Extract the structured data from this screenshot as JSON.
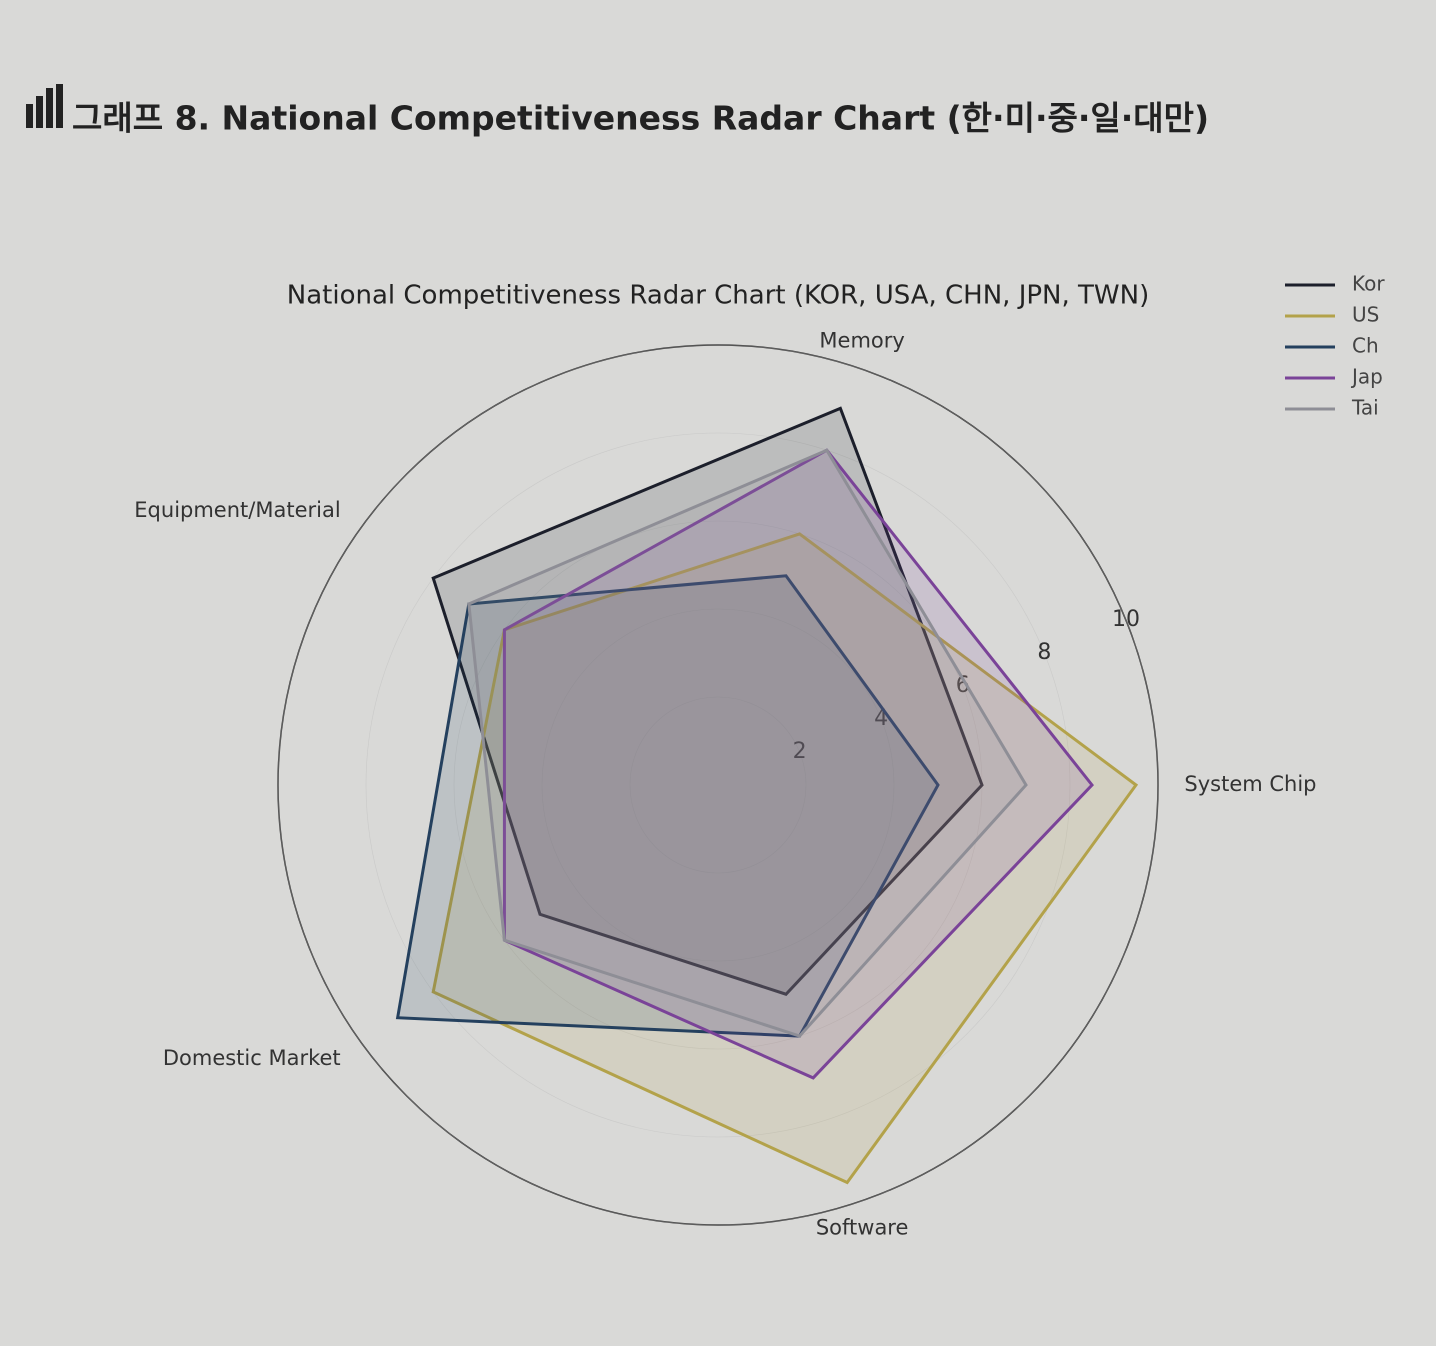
{
  "header": {
    "title": "그래프 8. National Competitiveness Radar Chart (한·미·중·일·대만)"
  },
  "chart_data": {
    "type": "radar",
    "title": "National Competitiveness Radar Chart (KOR, USA, CHN, JPN, TWN)",
    "categories": [
      "System Chip",
      "Memory",
      "Equipment/Material",
      "Domestic Market",
      "Software"
    ],
    "series": [
      {
        "name": "Kor",
        "color": "#1c1f2b",
        "values": [
          6,
          9,
          8,
          5,
          5
        ]
      },
      {
        "name": "US",
        "color": "#b3a24a",
        "values": [
          9.5,
          6,
          6,
          8,
          9.5
        ]
      },
      {
        "name": "Ch",
        "color": "#24405e",
        "values": [
          5,
          5,
          7,
          9,
          6
        ]
      },
      {
        "name": "Jap",
        "color": "#7a4398",
        "values": [
          8.5,
          8,
          6,
          6,
          7
        ]
      },
      {
        "name": "Tai",
        "color": "#8e8e96",
        "values": [
          7,
          8,
          7,
          6,
          6
        ]
      }
    ],
    "ylim": [
      0,
      10
    ],
    "yticks": [
      2,
      4,
      6,
      8,
      10
    ]
  }
}
